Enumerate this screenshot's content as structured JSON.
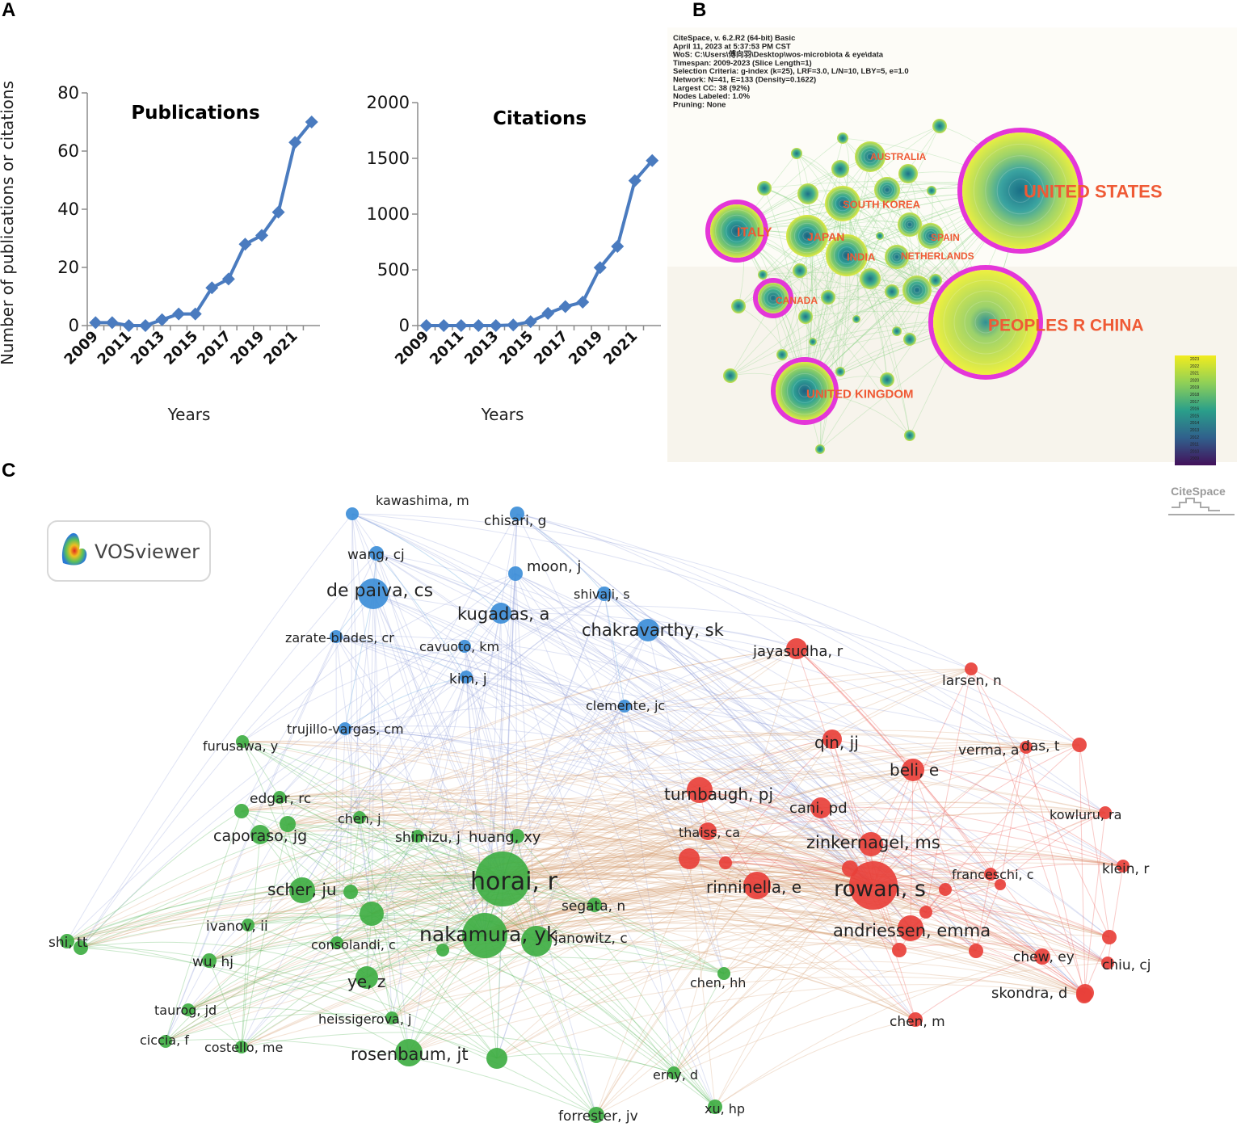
{
  "panels": {
    "a": "A",
    "b": "B",
    "c": "C"
  },
  "chart_data": [
    {
      "type": "line",
      "title": "Publications",
      "ylabel": "Number of publications or citations",
      "xlabel": "Years",
      "x": [
        2009,
        2010,
        2011,
        2012,
        2013,
        2014,
        2015,
        2016,
        2017,
        2018,
        2019,
        2020,
        2021,
        2022
      ],
      "values": [
        1,
        1,
        0,
        0,
        2,
        4,
        4,
        13,
        16,
        28,
        31,
        39,
        63,
        70
      ],
      "xticks": [
        "2009",
        "2011",
        "2013",
        "2015",
        "2017",
        "2019",
        "2021"
      ],
      "yticks": [
        "0",
        "20",
        "40",
        "60",
        "80"
      ],
      "ylim": [
        0,
        80
      ],
      "color": "#4a7bbf"
    },
    {
      "type": "line",
      "title": "Citations",
      "xlabel": "Years",
      "x": [
        2009,
        2010,
        2011,
        2012,
        2013,
        2014,
        2015,
        2016,
        2017,
        2018,
        2019,
        2020,
        2021,
        2022
      ],
      "values": [
        0,
        0,
        0,
        0,
        0,
        5,
        35,
        110,
        170,
        210,
        520,
        710,
        1300,
        1480
      ],
      "xticks": [
        "2009",
        "2011",
        "2013",
        "2015",
        "2017",
        "2019",
        "2021"
      ],
      "yticks": [
        "0",
        "500",
        "1000",
        "1500",
        "2000"
      ],
      "ylim": [
        0,
        2000
      ],
      "color": "#4a7bbf"
    }
  ],
  "citespace": {
    "info_lines": [
      "CiteSpace, v. 6.2.R2 (64-bit) Basic",
      "April 11, 2023 at 5:37:53 PM CST",
      "WoS: C:\\Users\\傅向羽\\Desktop\\wos-microbiota & eye\\data",
      "Timespan: 2009-2023 (Slice Length=1)",
      "Selection Criteria: g-index (k=25), LRF=3.0, L/N=10, LBY=5, e=1.0",
      "Network: N=41, E=133 (Density=0.1622)",
      "Largest CC: 38 (92%)",
      "Nodes Labeled: 1.0%",
      "Pruning: None"
    ],
    "countries": [
      "UNITED STATES",
      "PEOPLES R CHINA",
      "UNITED KINGDOM",
      "ITALY",
      "JAPAN",
      "INDIA",
      "SOUTH KOREA",
      "AUSTRALIA",
      "SPAIN",
      "NETHERLANDS",
      "CANADA"
    ],
    "colorbar_labels": [
      "2023",
      "2022",
      "2021",
      "2020",
      "2019",
      "2018",
      "2017",
      "2016",
      "2015",
      "2014",
      "2013",
      "2012",
      "2011",
      "2010",
      "2009"
    ],
    "watermark": "CiteSpace"
  },
  "vosviewer": {
    "logo_text": "VOSviewer",
    "authors": [
      "kawashima, m",
      "chisari, g",
      "wang, cj",
      "moon, j",
      "de paiva, cs",
      "shivaji, s",
      "kugadas, a",
      "chakravarthy, sk",
      "zarate-blades, cr",
      "cavuoto, km",
      "kim, j",
      "jayasudha, r",
      "larsen, n",
      "clemente, jc",
      "trujillo-vargas, cm",
      "furusawa, y",
      "qin, jj",
      "verma, a",
      "das, t",
      "beli, e",
      "turnbaugh, pj",
      "edgar, rc",
      "cani, pd",
      "kowluru, ra",
      "chen, j",
      "caporaso, jg",
      "shimizu, j",
      "huang, xy",
      "thaiss, ca",
      "zinkernagel, ms",
      "horai, r",
      "franceschi, c",
      "klein, r",
      "scher, ju",
      "rinninella, e",
      "rowan, s",
      "segata, n",
      "ivanov, ii",
      "nakamura, yk",
      "janowitz, c",
      "consolandi, c",
      "andriessen, emma",
      "shi, tt",
      "wu, hj",
      "ye, z",
      "chew, ey",
      "chiu, cj",
      "chen, hh",
      "skondra, d",
      "taurog, jd",
      "heissigerova, j",
      "chen, m",
      "ciccia, f",
      "costello, me",
      "rosenbaum, jt",
      "erny, d",
      "forrester, jv",
      "xu, hp"
    ]
  }
}
